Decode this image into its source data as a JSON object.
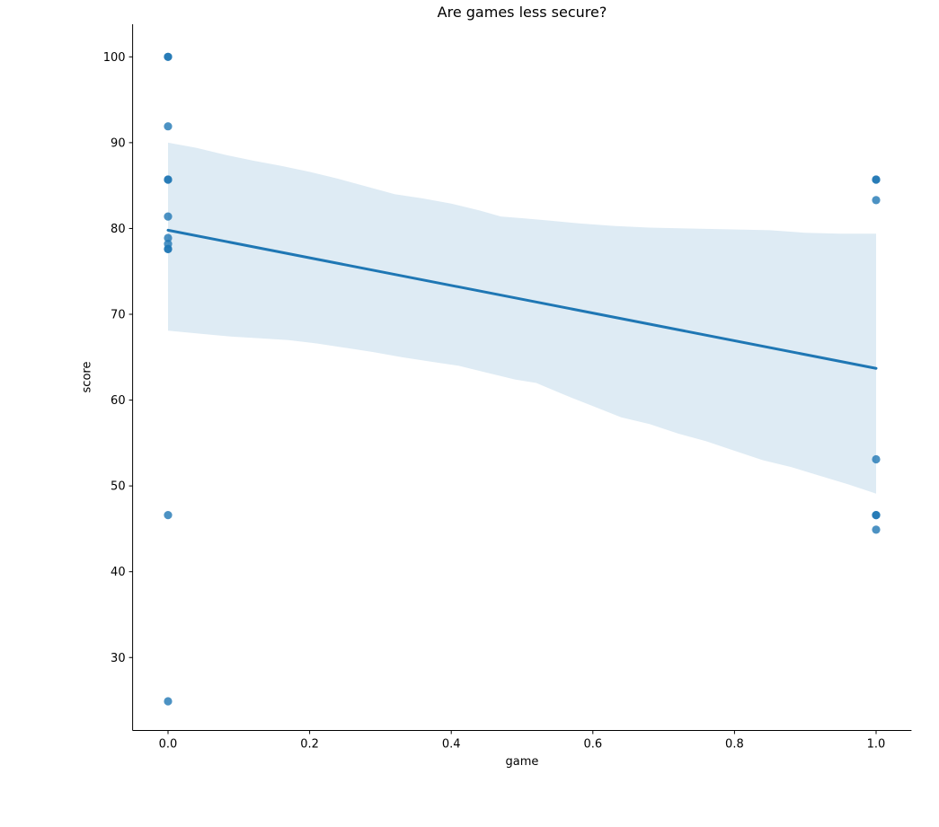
{
  "figure": {
    "title": "Are games less secure?",
    "xlabel": "game",
    "ylabel": "score"
  },
  "chart_data": {
    "type": "scatter",
    "subtype": "regplot-with-confidence-band",
    "title": "Are games less secure?",
    "xlabel": "game",
    "ylabel": "score",
    "xlim": [
      -0.05,
      1.05
    ],
    "ylim": [
      21.5,
      103.8
    ],
    "x_ticks": [
      0.0,
      0.2,
      0.4,
      0.6,
      0.8,
      1.0
    ],
    "x_tick_labels": [
      "0.0",
      "0.2",
      "0.4",
      "0.6",
      "0.8",
      "1.0"
    ],
    "y_ticks": [
      30,
      40,
      50,
      60,
      70,
      80,
      90,
      100
    ],
    "y_tick_labels": [
      "30",
      "40",
      "50",
      "60",
      "70",
      "80",
      "90",
      "100"
    ],
    "grid": false,
    "legend_position": "none",
    "colors": {
      "point": "#1f77b4",
      "point_alpha": 0.8,
      "line": "#1f77b4",
      "band": "#1f77b4",
      "band_alpha": 0.15,
      "axis": "#000000",
      "text": "#000000"
    },
    "marker_radius": 4.6,
    "line_width": 3,
    "scatter_points": [
      {
        "x": 0,
        "y": 100.0,
        "n": 2
      },
      {
        "x": 0,
        "y": 91.9,
        "n": 1
      },
      {
        "x": 0,
        "y": 85.7,
        "n": 2
      },
      {
        "x": 0,
        "y": 81.4,
        "n": 1
      },
      {
        "x": 0,
        "y": 78.9,
        "n": 1
      },
      {
        "x": 0,
        "y": 78.2,
        "n": 1
      },
      {
        "x": 0,
        "y": 77.6,
        "n": 2
      },
      {
        "x": 0,
        "y": 46.6,
        "n": 1
      },
      {
        "x": 0,
        "y": 24.9,
        "n": 1
      },
      {
        "x": 1,
        "y": 85.7,
        "n": 2
      },
      {
        "x": 1,
        "y": 83.3,
        "n": 1
      },
      {
        "x": 1,
        "y": 53.1,
        "n": 1
      },
      {
        "x": 1,
        "y": 46.6,
        "n": 2
      },
      {
        "x": 1,
        "y": 44.9,
        "n": 1
      }
    ],
    "regression_line": {
      "x": [
        0,
        1
      ],
      "y": [
        79.8,
        63.7
      ]
    },
    "confidence_band": {
      "upper": [
        [
          0.0,
          90.0
        ],
        [
          0.04,
          89.4
        ],
        [
          0.08,
          88.6
        ],
        [
          0.12,
          87.9
        ],
        [
          0.16,
          87.3
        ],
        [
          0.2,
          86.6
        ],
        [
          0.24,
          85.8
        ],
        [
          0.28,
          84.9
        ],
        [
          0.32,
          84.0
        ],
        [
          0.36,
          83.5
        ],
        [
          0.4,
          82.9
        ],
        [
          0.44,
          82.1
        ],
        [
          0.47,
          81.4
        ],
        [
          0.5,
          81.2
        ],
        [
          0.54,
          80.9
        ],
        [
          0.58,
          80.6
        ],
        [
          0.63,
          80.3
        ],
        [
          0.68,
          80.1
        ],
        [
          0.73,
          80.0
        ],
        [
          0.79,
          79.9
        ],
        [
          0.85,
          79.8
        ],
        [
          0.9,
          79.5
        ],
        [
          0.95,
          79.4
        ],
        [
          1.0,
          79.4
        ]
      ],
      "lower": [
        [
          0.0,
          68.1
        ],
        [
          0.05,
          67.7
        ],
        [
          0.09,
          67.4
        ],
        [
          0.13,
          67.2
        ],
        [
          0.17,
          67.0
        ],
        [
          0.21,
          66.6
        ],
        [
          0.25,
          66.1
        ],
        [
          0.29,
          65.6
        ],
        [
          0.33,
          65.0
        ],
        [
          0.37,
          64.5
        ],
        [
          0.41,
          64.0
        ],
        [
          0.45,
          63.2
        ],
        [
          0.49,
          62.4
        ],
        [
          0.52,
          62.0
        ],
        [
          0.56,
          60.6
        ],
        [
          0.6,
          59.3
        ],
        [
          0.64,
          58.0
        ],
        [
          0.68,
          57.2
        ],
        [
          0.72,
          56.1
        ],
        [
          0.76,
          55.2
        ],
        [
          0.8,
          54.1
        ],
        [
          0.84,
          53.0
        ],
        [
          0.88,
          52.2
        ],
        [
          0.92,
          51.2
        ],
        [
          0.96,
          50.2
        ],
        [
          1.0,
          49.1
        ]
      ]
    }
  }
}
